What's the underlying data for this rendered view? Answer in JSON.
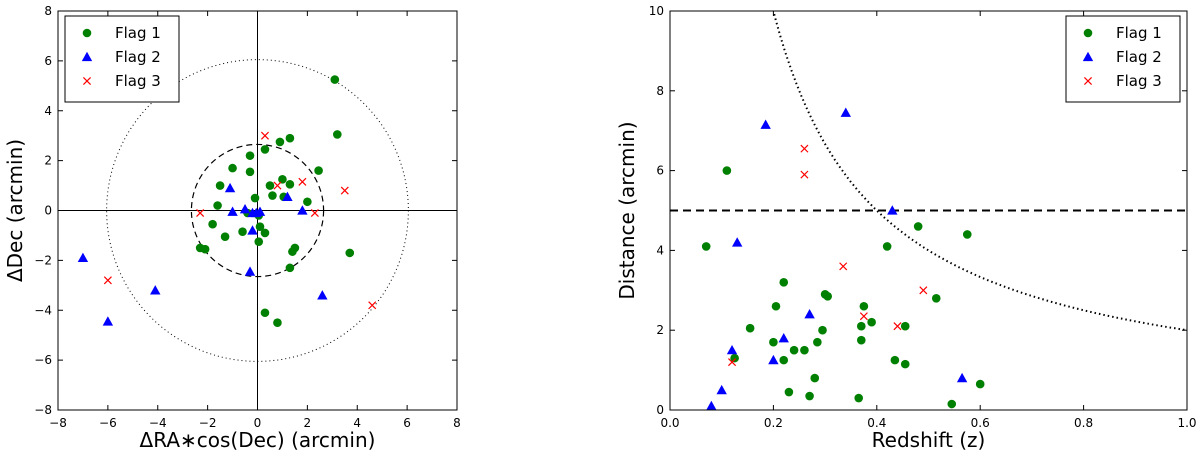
{
  "chart_data": [
    {
      "type": "scatter",
      "title": "",
      "xlabel": "ΔRA∗cos(Dec) (arcmin)",
      "ylabel": "ΔDec (arcmin)",
      "xlim": [
        -8,
        8
      ],
      "ylim": [
        -8,
        8
      ],
      "xticks": [
        -8,
        -6,
        -4,
        -2,
        0,
        2,
        4,
        6,
        8
      ],
      "yticks": [
        -8,
        -6,
        -4,
        -2,
        0,
        2,
        4,
        6,
        8
      ],
      "legend_position": "top-left",
      "reference_lines": {
        "x": 0,
        "y": 0
      },
      "circles": [
        {
          "radius": 2.65,
          "style": "dashed"
        },
        {
          "radius": 6.05,
          "style": "dotted"
        }
      ],
      "series": [
        {
          "name": "Flag 1",
          "marker": "circle",
          "color": "#008000",
          "points": [
            [
              3.1,
              5.25
            ],
            [
              3.2,
              3.05
            ],
            [
              1.3,
              2.9
            ],
            [
              0.9,
              2.75
            ],
            [
              0.3,
              2.45
            ],
            [
              -0.3,
              2.2
            ],
            [
              2.45,
              1.6
            ],
            [
              -1.0,
              1.7
            ],
            [
              -0.3,
              1.55
            ],
            [
              1.0,
              1.25
            ],
            [
              0.5,
              1.0
            ],
            [
              1.3,
              1.05
            ],
            [
              -1.5,
              1.0
            ],
            [
              0.6,
              0.6
            ],
            [
              1.05,
              0.55
            ],
            [
              2.0,
              0.35
            ],
            [
              -1.6,
              0.2
            ],
            [
              -0.1,
              0.5
            ],
            [
              -0.4,
              -0.1
            ],
            [
              0.05,
              -0.2
            ],
            [
              -1.8,
              -0.55
            ],
            [
              0.1,
              -0.65
            ],
            [
              -0.6,
              -0.85
            ],
            [
              0.3,
              -0.9
            ],
            [
              -1.3,
              -1.05
            ],
            [
              0.05,
              -1.25
            ],
            [
              -2.3,
              -1.5
            ],
            [
              -2.1,
              -1.55
            ],
            [
              1.5,
              -1.5
            ],
            [
              1.4,
              -1.65
            ],
            [
              3.7,
              -1.7
            ],
            [
              1.3,
              -2.3
            ],
            [
              0.3,
              -4.1
            ],
            [
              0.8,
              -4.5
            ]
          ]
        },
        {
          "name": "Flag 2",
          "marker": "triangle",
          "color": "#0000ff",
          "points": [
            [
              -1.1,
              0.9
            ],
            [
              1.2,
              0.55
            ],
            [
              -0.5,
              0.05
            ],
            [
              -0.2,
              -0.1
            ],
            [
              -0.05,
              -0.1
            ],
            [
              -1.0,
              -0.05
            ],
            [
              0.1,
              -0.05
            ],
            [
              1.8,
              0.0
            ],
            [
              -0.2,
              -0.8
            ],
            [
              -0.3,
              -2.45
            ],
            [
              -7.0,
              -1.9
            ],
            [
              -4.1,
              -3.2
            ],
            [
              2.6,
              -3.4
            ],
            [
              -6.0,
              -4.45
            ]
          ]
        },
        {
          "name": "Flag 3",
          "marker": "x",
          "color": "#ff0000",
          "points": [
            [
              0.3,
              3.0
            ],
            [
              0.8,
              1.0
            ],
            [
              1.8,
              1.15
            ],
            [
              3.5,
              0.8
            ],
            [
              2.3,
              -0.1
            ],
            [
              -2.3,
              -0.1
            ],
            [
              -6.0,
              -2.8
            ],
            [
              4.6,
              -3.8
            ]
          ]
        }
      ]
    },
    {
      "type": "scatter",
      "title": "",
      "xlabel": "Redshift (z)",
      "ylabel": "Distance (arcmin)",
      "xlim": [
        0.0,
        1.0
      ],
      "ylim": [
        0,
        10
      ],
      "xticks": [
        0.0,
        0.2,
        0.4,
        0.6,
        0.8,
        1.0
      ],
      "xtick_labels": [
        "0.0",
        "0.2",
        "0.4",
        "0.6",
        "0.8",
        "1.0"
      ],
      "yticks": [
        0,
        2,
        4,
        6,
        8,
        10
      ],
      "legend_position": "top-right",
      "hline": {
        "y": 5,
        "style": "dashed"
      },
      "curve": {
        "style": "dotted",
        "from_z": 0.09,
        "to_z": 1.0,
        "k": 0.2,
        "power": 1.0
      },
      "series": [
        {
          "name": "Flag 1",
          "marker": "circle",
          "color": "#008000",
          "points": [
            [
              0.07,
              4.1
            ],
            [
              0.11,
              6.0
            ],
            [
              0.125,
              1.3
            ],
            [
              0.155,
              2.05
            ],
            [
              0.2,
              1.7
            ],
            [
              0.205,
              2.6
            ],
            [
              0.22,
              3.2
            ],
            [
              0.22,
              1.25
            ],
            [
              0.23,
              0.45
            ],
            [
              0.24,
              1.5
            ],
            [
              0.26,
              1.5
            ],
            [
              0.27,
              0.35
            ],
            [
              0.28,
              0.8
            ],
            [
              0.285,
              1.7
            ],
            [
              0.295,
              2.0
            ],
            [
              0.3,
              2.9
            ],
            [
              0.305,
              2.85
            ],
            [
              0.365,
              0.3
            ],
            [
              0.37,
              2.1
            ],
            [
              0.375,
              2.6
            ],
            [
              0.37,
              1.75
            ],
            [
              0.39,
              2.2
            ],
            [
              0.42,
              4.1
            ],
            [
              0.435,
              1.25
            ],
            [
              0.455,
              2.1
            ],
            [
              0.455,
              1.15
            ],
            [
              0.48,
              4.6
            ],
            [
              0.515,
              2.8
            ],
            [
              0.545,
              0.15
            ],
            [
              0.575,
              4.4
            ],
            [
              0.6,
              0.65
            ]
          ]
        },
        {
          "name": "Flag 2",
          "marker": "triangle",
          "color": "#0000ff",
          "points": [
            [
              0.08,
              0.1
            ],
            [
              0.1,
              0.5
            ],
            [
              0.12,
              1.5
            ],
            [
              0.13,
              4.2
            ],
            [
              0.185,
              7.15
            ],
            [
              0.2,
              1.25
            ],
            [
              0.22,
              1.8
            ],
            [
              0.27,
              2.4
            ],
            [
              0.34,
              7.45
            ],
            [
              0.43,
              5.0
            ],
            [
              0.565,
              0.8
            ]
          ]
        },
        {
          "name": "Flag 3",
          "marker": "x",
          "color": "#ff0000",
          "points": [
            [
              0.12,
              1.2
            ],
            [
              0.26,
              6.55
            ],
            [
              0.26,
              5.9
            ],
            [
              0.335,
              3.6
            ],
            [
              0.375,
              2.35
            ],
            [
              0.44,
              2.1
            ],
            [
              0.49,
              3.0
            ]
          ]
        }
      ]
    }
  ]
}
